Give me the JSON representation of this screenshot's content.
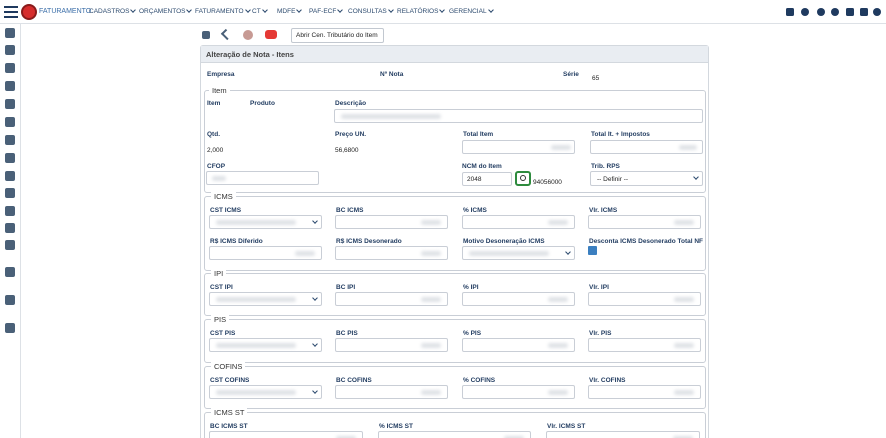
{
  "navbar": {
    "brand": "FATURAMENTO",
    "menu": [
      "CADASTROS",
      "ORÇAMENTOS",
      "FATURAMENTO",
      "CT",
      "MDFE",
      "PAF-ECF",
      "CONSULTAS",
      "RELATÓRIOS",
      "GERENCIAL"
    ]
  },
  "toolbar": {
    "button": "Abrir Cen. Tributário do Item"
  },
  "form": {
    "title": "Alteração de Nota - Itens",
    "header_fields": {
      "empresa": "Empresa",
      "nota": "Nº Nota",
      "serie": "Série",
      "serie_value": "65"
    },
    "item": {
      "legend": "Item",
      "item": "Item",
      "produto": "Produto",
      "descricao": "Descrição",
      "qtd": "Qtd.",
      "qtd_value": "2,000",
      "preco": "Preço UN.",
      "preco_value": "56,6800",
      "total": "Total Item",
      "total_impostos": "Total It. + Impostos",
      "cfop": "CFOP",
      "ncm": "NCM do Item",
      "ncm_input": "2048",
      "ncm_code": "94056000",
      "trib_rps": "Trib. RPS",
      "trib_rps_value": "-- Definir --"
    },
    "sections": [
      {
        "legend": "ICMS",
        "rows": [
          [
            "CST ICMS",
            "BC ICMS",
            "% ICMS",
            "Vlr. ICMS"
          ],
          [
            "R$ ICMS Diferido",
            "R$ ICMS Desonerado",
            "Motivo Desoneração ICMS",
            "Desconta ICMS Desonerado Total NF"
          ]
        ]
      },
      {
        "legend": "IPI",
        "rows": [
          [
            "CST IPI",
            "BC IPI",
            "% IPI",
            "Vlr. IPI"
          ]
        ]
      },
      {
        "legend": "PIS",
        "rows": [
          [
            "CST PIS",
            "BC PIS",
            "% PIS",
            "Vlr. PIS"
          ]
        ]
      },
      {
        "legend": "COFINS",
        "rows": [
          [
            "CST COFINS",
            "BC COFINS",
            "% COFINS",
            "Vlr. COFINS"
          ]
        ]
      },
      {
        "legend": "ICMS ST",
        "rows": [
          [
            "BC ICMS ST",
            "% ICMS ST",
            "Vlr. ICMS ST"
          ]
        ]
      }
    ]
  }
}
